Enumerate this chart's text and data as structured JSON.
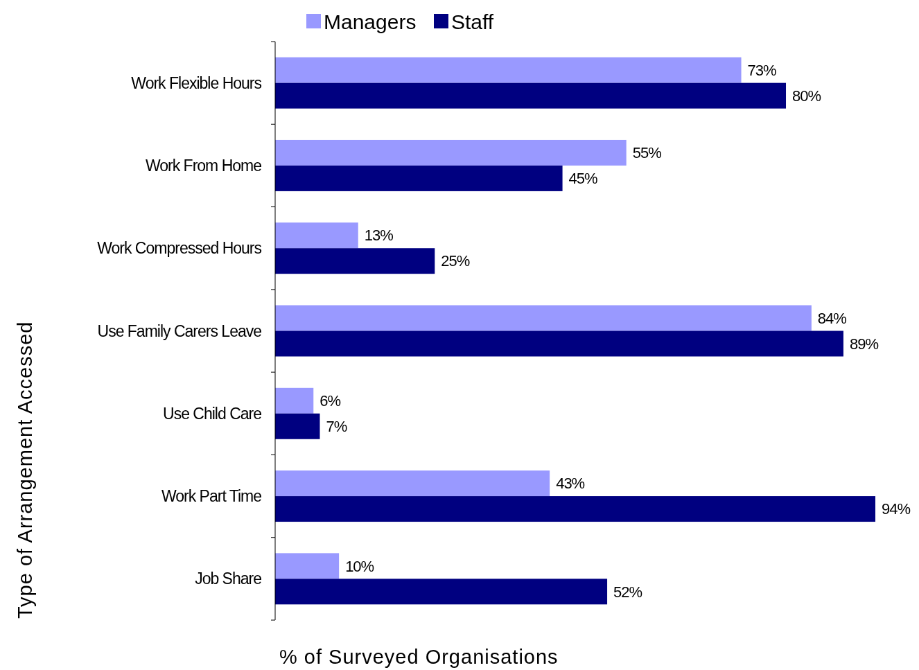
{
  "chart_data": {
    "type": "bar",
    "orientation": "horizontal",
    "xlabel": "% of Surveyed Organisations",
    "ylabel": "Type of Arrangement Accessed",
    "categories": [
      "Work Flexible Hours",
      "Work From Home",
      "Work Compressed Hours",
      "Use Family Carers Leave",
      "Use Child Care",
      "Work Part Time",
      "Job Share"
    ],
    "series": [
      {
        "name": "Managers",
        "color": "#9999ff",
        "values": [
          73,
          55,
          13,
          84,
          6,
          43,
          10
        ],
        "value_labels": [
          "73%",
          "55%",
          "13%",
          "84%",
          "6%",
          "43%",
          "10%"
        ]
      },
      {
        "name": "Staff",
        "color": "#000080",
        "values": [
          80,
          45,
          25,
          89,
          7,
          94,
          52
        ],
        "value_labels": [
          "80%",
          "45%",
          "25%",
          "89%",
          "7%",
          "94%",
          "52%"
        ]
      }
    ],
    "legend": "top"
  }
}
